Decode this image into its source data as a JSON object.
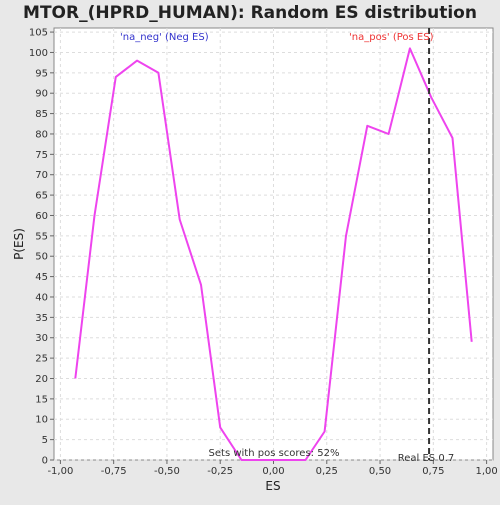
{
  "chart_data": {
    "type": "line",
    "title": "MTOR_(HPRD_HUMAN): Random ES distribution",
    "xlabel": "ES",
    "ylabel": "P(ES)",
    "xlim": [
      -1.03,
      1.03
    ],
    "ylim": [
      0,
      106
    ],
    "x_ticks": [
      -1.0,
      -0.75,
      -0.5,
      -0.25,
      0.0,
      0.25,
      0.5,
      0.75,
      1.0
    ],
    "x_tick_labels": [
      "-1,00",
      "-0,75",
      "-0,50",
      "-0,25",
      "0,00",
      "0,25",
      "0,50",
      "0,75",
      "1,00"
    ],
    "y_ticks": [
      0,
      5,
      10,
      15,
      20,
      25,
      30,
      35,
      40,
      45,
      50,
      55,
      60,
      65,
      70,
      75,
      80,
      85,
      90,
      95,
      100,
      105
    ],
    "grid": true,
    "series": [
      {
        "color": "#ee44ee",
        "x": [
          -0.93,
          -0.84,
          -0.74,
          -0.64,
          -0.54,
          -0.44,
          -0.34,
          -0.25,
          -0.15,
          0.15,
          0.24,
          0.34,
          0.44,
          0.54,
          0.64,
          0.74,
          0.84,
          0.93
        ],
        "y": [
          20,
          60,
          94,
          98,
          95,
          59,
          43,
          8,
          0,
          0,
          7,
          55,
          82,
          80,
          101,
          89,
          79,
          29
        ]
      }
    ],
    "reference_line": {
      "x": 0.73,
      "label": "Real ES 0.7",
      "color": "#333333",
      "style": "dashed"
    },
    "annotations": {
      "neg": {
        "text": "'na_neg' (Neg ES)",
        "color": "#3333cc"
      },
      "pos": {
        "text": "'na_pos' (Pos ES)",
        "color": "#ee3333"
      },
      "bottom": {
        "text": "Sets with pos scores: 52%",
        "color": "#333333"
      }
    }
  }
}
